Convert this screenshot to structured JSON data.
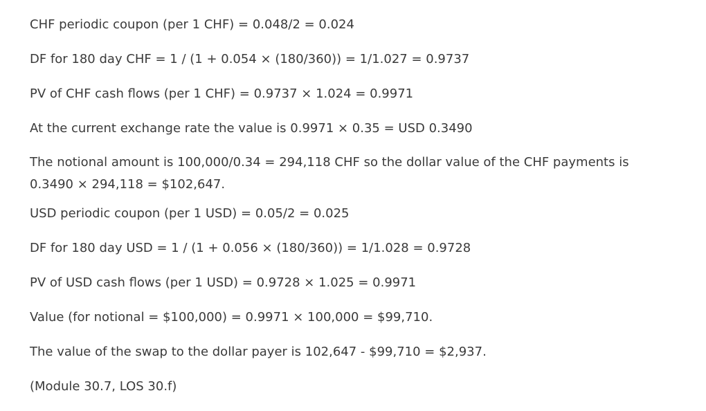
{
  "lines": [
    "CHF periodic coupon (per 1 CHF) = 0.048/2 = 0.024",
    "DF for 180 day CHF = 1 / (1 + 0.054 × (180/360)) = 1/1.027 = 0.9737",
    "PV of CHF cash flows (per 1 CHF) = 0.9737 × 1.024 = 0.9971",
    "At the current exchange rate the value is 0.9971 × 0.35 = USD 0.3490",
    "The notional amount is 100,000/0.34 = 294,118 CHF so the dollar value of the CHF payments is 0.3490 × 294,118 = $102,647.",
    "USD periodic coupon (per 1 USD) = 0.05/2 = 0.025",
    "DF for 180 day USD = 1 / (1 + 0.056 × (180/360)) = 1/1.028 = 0.9728",
    "PV of USD cash flows (per 1 USD) = 0.9728 × 1.025 = 0.9971",
    "Value (for notional = $100,000) = 0.9971 × 100,000 = $99,710.",
    "The value of the swap to the dollar payer is 102,647 - $99,710 = $2,937.",
    "(Module 30.7, LOS 30.f)"
  ]
}
